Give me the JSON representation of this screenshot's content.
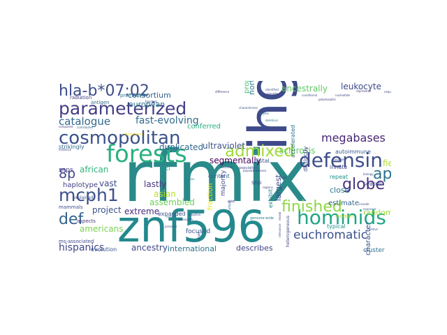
{
  "words": [
    {
      "text": "rfmix",
      "color": "#2a8a8a"
    },
    {
      "text": "ihgsc",
      "color": "#3e4a89"
    },
    {
      "text": "znf596",
      "color": "#23898e"
    },
    {
      "text": "forests",
      "color": "#2ab07f"
    },
    {
      "text": "cosmopolitan",
      "color": "#3b528b"
    },
    {
      "text": "parameterized",
      "color": "#433e85"
    },
    {
      "text": "defensin",
      "color": "#3d4e8a"
    },
    {
      "text": "hominids",
      "color": "#21a585"
    },
    {
      "text": "hla-b*07:02",
      "color": "#3d4d8a"
    },
    {
      "text": "mcph1",
      "color": "#3c508b"
    },
    {
      "text": "finished",
      "color": "#8fd744"
    },
    {
      "text": "admixed",
      "color": "#9fda3a"
    },
    {
      "text": "globe",
      "color": "#46327e"
    },
    {
      "text": "apes",
      "color": "#2c718e"
    },
    {
      "text": "def",
      "color": "#33638d"
    },
    {
      "text": "8p",
      "color": "#3f4788"
    },
    {
      "text": "catalogue",
      "color": "#31688e"
    },
    {
      "text": "euchromatic",
      "color": "#3b518b"
    },
    {
      "text": "megabases",
      "color": "#482576"
    },
    {
      "text": "hispanics",
      "color": "#3f4889"
    },
    {
      "text": "fast-evolving",
      "color": "#306a8e"
    },
    {
      "text": "ancestrally",
      "color": "#5ec962"
    },
    {
      "text": "leukocyte",
      "color": "#3e4989"
    },
    {
      "text": "consortium",
      "color": "#355f8d"
    },
    {
      "text": "european",
      "color": "#2a778e"
    },
    {
      "text": "northern",
      "color": "#287c8e"
    },
    {
      "text": "conferred",
      "color": "#27ad81"
    },
    {
      "text": "proportion",
      "color": "#4ac16d"
    },
    {
      "text": "ultraviolet",
      "color": "#3b528b"
    },
    {
      "text": "duplicated",
      "color": "#31688e"
    },
    {
      "text": "sclerosis",
      "color": "#5ec962"
    },
    {
      "text": "segmentally",
      "color": "#440154"
    },
    {
      "text": "african",
      "color": "#31b57b"
    },
    {
      "text": "vast",
      "color": "#3e4a89"
    },
    {
      "text": "lastly",
      "color": "#46327e"
    },
    {
      "text": "asian",
      "color": "#bddf26"
    },
    {
      "text": "assembled",
      "color": "#6ece58"
    },
    {
      "text": "extreme",
      "color": "#472d7b"
    },
    {
      "text": "project",
      "color": "#3b528b"
    },
    {
      "text": "americans",
      "color": "#7ad151"
    },
    {
      "text": "ancestry",
      "color": "#3e4a89"
    },
    {
      "text": "international",
      "color": "#2c728e"
    },
    {
      "text": "describes",
      "color": "#424086"
    },
    {
      "text": "field",
      "color": "#addc30"
    },
    {
      "text": "chromosome",
      "color": "#38588c"
    },
    {
      "text": "largest",
      "color": "#3e4c8a"
    },
    {
      "text": "close",
      "color": "#2a768e"
    },
    {
      "text": "estimate",
      "color": "#33638d"
    },
    {
      "text": "random",
      "color": "#a0da39"
    },
    {
      "text": "character",
      "color": "#3a538b"
    },
    {
      "text": "haplotype",
      "color": "#423f85"
    },
    {
      "text": "snps",
      "color": "#443983"
    },
    {
      "text": "loci",
      "color": "#1fa088"
    },
    {
      "text": "content",
      "color": "#33638d"
    },
    {
      "text": "focused",
      "color": "#3b528b"
    },
    {
      "text": "cluster",
      "color": "#2e6f8e"
    },
    {
      "text": "evolution",
      "color": "#39568c"
    },
    {
      "text": "typical",
      "color": "#20928c"
    },
    {
      "text": "exhibit",
      "color": "#25848e"
    },
    {
      "text": "repeat",
      "color": "#21918c"
    },
    {
      "text": "search",
      "color": "#3e4a89"
    },
    {
      "text": "innate",
      "color": "#414487"
    },
    {
      "text": "distal",
      "color": "#3b528b"
    },
    {
      "text": "snp",
      "color": "#3f4788"
    },
    {
      "text": "fraction",
      "color": "#e2e418"
    },
    {
      "text": "majority",
      "color": "#3e4a89"
    },
    {
      "text": "expanded",
      "color": "#3b528b"
    },
    {
      "text": "radiation",
      "color": "#433e85"
    },
    {
      "text": "antigen",
      "color": "#31688e"
    },
    {
      "text": "prominent",
      "color": "#2a788e"
    },
    {
      "text": "autoimmune",
      "color": "#38588c"
    },
    {
      "text": "distinctly",
      "color": "#3e4a89"
    },
    {
      "text": "accelerated",
      "color": "#2e6e8e"
    },
    {
      "text": "strikingly",
      "color": "#31688e"
    },
    {
      "text": "mammals",
      "color": "#3b528b"
    },
    {
      "text": "aspects",
      "color": "#46327e"
    },
    {
      "text": "ms-associated",
      "color": "#3e4a89"
    },
    {
      "text": "explained",
      "color": "#3b528b"
    },
    {
      "text": "median",
      "color": "#b5de2b"
    },
    {
      "text": "heterogeneous",
      "color": "#3f4788"
    },
    {
      "text": "population",
      "color": "#3e4a89"
    },
    {
      "text": "genome-wide",
      "color": "#2a788e"
    },
    {
      "text": "terms",
      "color": "#3b528b"
    },
    {
      "text": "compared",
      "color": "#433e85"
    },
    {
      "text": "contributed",
      "color": "#31688e"
    },
    {
      "text": "evidence",
      "color": "#3e4a89"
    },
    {
      "text": "duplicated",
      "color": "#fde725"
    },
    {
      "text": "difference",
      "color": "#46327e"
    },
    {
      "text": "characterizes",
      "color": "#3b528b"
    },
    {
      "text": "complex",
      "color": "#31688e"
    },
    {
      "text": "local",
      "color": "#3e4a89"
    },
    {
      "text": "deletions",
      "color": "#2a788e"
    },
    {
      "text": "sequences",
      "color": "#3e4a89"
    },
    {
      "text": "nucleotide",
      "color": "#433e85"
    },
    {
      "text": "conditional",
      "color": "#3b528b"
    },
    {
      "text": "polymorphic",
      "color": "#46327e"
    },
    {
      "text": "include",
      "color": "#3e4a89"
    },
    {
      "text": "exposure",
      "color": "#31688e"
    },
    {
      "text": "biology",
      "color": "#3b528b"
    },
    {
      "text": "region",
      "color": "#2a788e"
    },
    {
      "text": "regions",
      "color": "#3e4a89"
    },
    {
      "text": "brain",
      "color": "#433e85"
    },
    {
      "text": "size",
      "color": "#46327e"
    },
    {
      "text": "disease",
      "color": "#3b528b"
    },
    {
      "text": "variation",
      "color": "#3e4a89"
    },
    {
      "text": "distance",
      "color": "#3b528b"
    },
    {
      "text": "multiple",
      "color": "#31688e"
    },
    {
      "text": "single",
      "color": "#3e4a89"
    },
    {
      "text": "reveal",
      "color": "#433e85"
    },
    {
      "text": "relevance",
      "color": "#3b528b"
    },
    {
      "text": "represents",
      "color": "#46327e"
    },
    {
      "text": "populations",
      "color": "#3e4a89"
    },
    {
      "text": "relative",
      "color": "#3b528b"
    },
    {
      "text": "feature",
      "color": "#31688e"
    },
    {
      "text": "pressure",
      "color": "#3e4a89"
    },
    {
      "text": "identified",
      "color": "#3b528b"
    },
    {
      "text": "identifies",
      "color": "#433e85"
    },
    {
      "text": "previously",
      "color": "#3e4a89"
    },
    {
      "text": "adaptive",
      "color": "#3b528b"
    }
  ]
}
